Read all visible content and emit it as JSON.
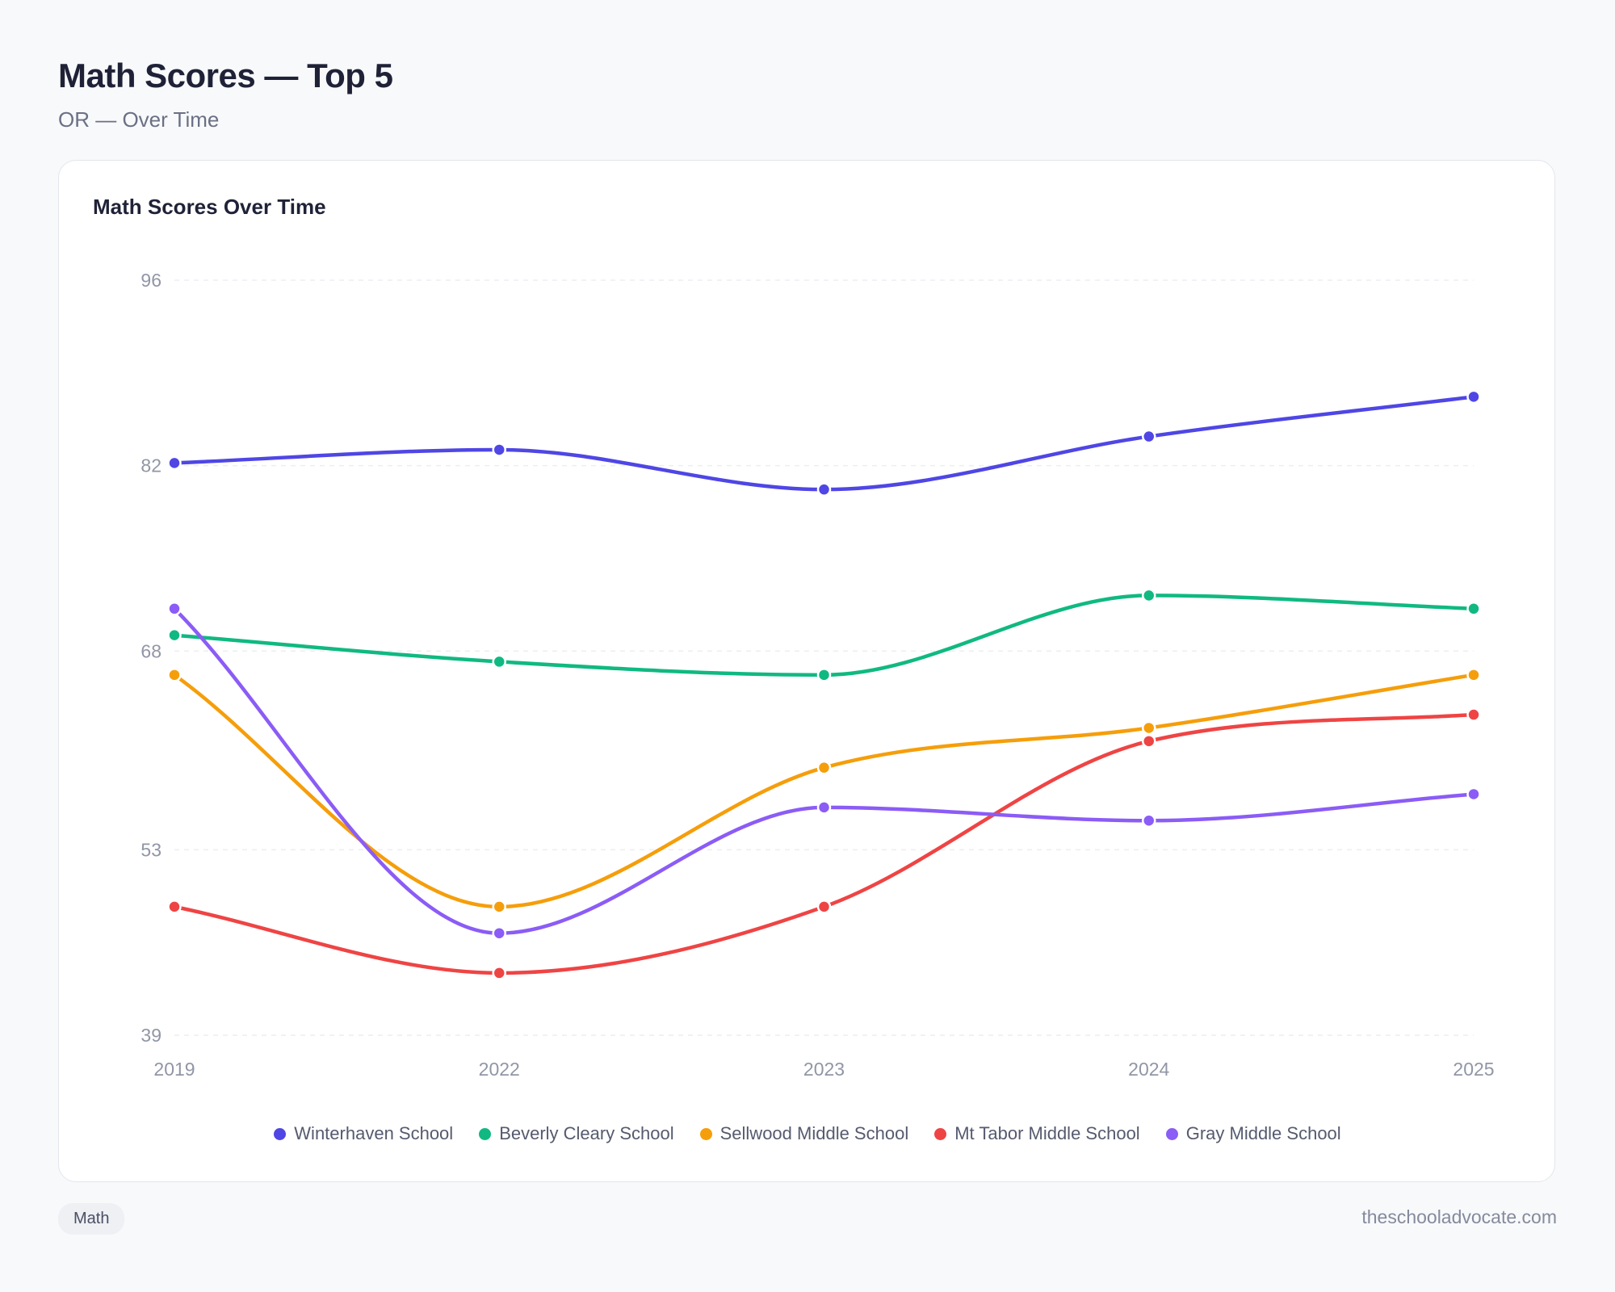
{
  "header": {
    "title": "Math Scores — Top 5",
    "subtitle": "OR — Over Time"
  },
  "footer": {
    "tag": "Math",
    "site": "theschooladvocate.com"
  },
  "chart_data": {
    "type": "line",
    "title": "Math Scores Over Time",
    "xlabel": "",
    "ylabel": "",
    "x": [
      "2019",
      "2022",
      "2023",
      "2024",
      "2025"
    ],
    "ylim": [
      39,
      96
    ],
    "yticks": [
      96,
      82,
      68,
      53,
      39
    ],
    "grid": true,
    "legend_position": "bottom",
    "series": [
      {
        "name": "Winterhaven School",
        "color": "#4f46e5",
        "values": [
          82.2,
          83.2,
          80.2,
          84.2,
          87.2
        ]
      },
      {
        "name": "Beverly Cleary School",
        "color": "#10b981",
        "values": [
          69.2,
          67.2,
          66.2,
          72.2,
          71.2
        ]
      },
      {
        "name": "Sellwood Middle School",
        "color": "#f59e0b",
        "values": [
          66.2,
          48.7,
          59.2,
          62.2,
          66.2
        ]
      },
      {
        "name": "Mt Tabor Middle School",
        "color": "#ef4444",
        "values": [
          48.7,
          43.7,
          48.7,
          61.2,
          63.2
        ]
      },
      {
        "name": "Gray Middle School",
        "color": "#8b5cf6",
        "values": [
          71.2,
          46.7,
          56.2,
          55.2,
          57.2
        ]
      }
    ]
  }
}
